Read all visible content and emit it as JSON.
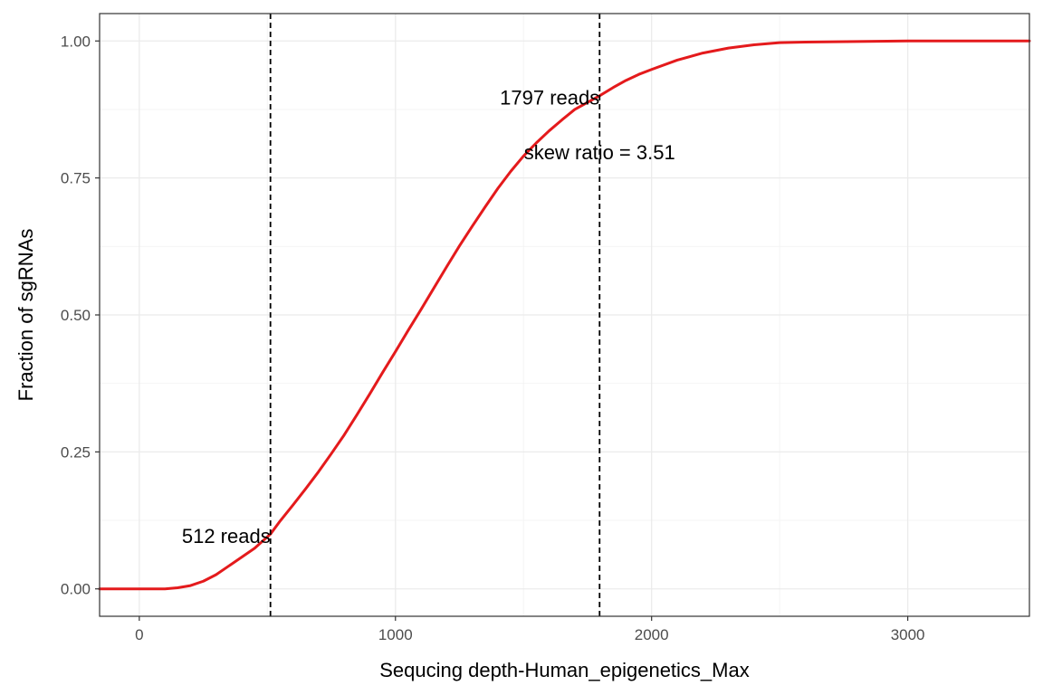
{
  "chart_data": {
    "type": "line",
    "xlabel": "Sequcing depth-Human_epigenetics_Max",
    "ylabel": "Fraction of sgRNAs",
    "xlim": [
      -155,
      3475
    ],
    "ylim": [
      -0.05,
      1.05
    ],
    "x_ticks": [
      0,
      1000,
      2000,
      3000
    ],
    "x_tick_labels": [
      "0",
      "1000",
      "2000",
      "3000"
    ],
    "y_ticks": [
      0,
      0.25,
      0.5,
      0.75,
      1.0
    ],
    "y_tick_labels": [
      "0.00",
      "0.25",
      "0.50",
      "0.75",
      "1.00"
    ],
    "grid": true,
    "legend": "none",
    "series": [
      {
        "color": "#e41a1c",
        "x": [
          -155,
          0,
          100,
          150,
          200,
          250,
          300,
          350,
          400,
          450,
          512,
          550,
          600,
          650,
          700,
          750,
          800,
          850,
          900,
          950,
          1000,
          1050,
          1100,
          1150,
          1200,
          1250,
          1300,
          1350,
          1400,
          1450,
          1500,
          1550,
          1600,
          1650,
          1700,
          1797,
          1850,
          1900,
          1950,
          2000,
          2100,
          2200,
          2300,
          2400,
          2500,
          2600,
          2800,
          3000,
          3200,
          3475
        ],
        "y": [
          0.0,
          0.0,
          0.0,
          0.002,
          0.006,
          0.014,
          0.026,
          0.042,
          0.058,
          0.074,
          0.1,
          0.124,
          0.153,
          0.183,
          0.214,
          0.247,
          0.281,
          0.318,
          0.356,
          0.395,
          0.433,
          0.472,
          0.51,
          0.549,
          0.588,
          0.626,
          0.662,
          0.697,
          0.731,
          0.762,
          0.79,
          0.814,
          0.836,
          0.856,
          0.875,
          0.9,
          0.915,
          0.928,
          0.939,
          0.948,
          0.965,
          0.978,
          0.987,
          0.993,
          0.997,
          0.998,
          0.999,
          1.0,
          1.0,
          1.0
        ]
      }
    ],
    "vlines": [
      {
        "x": 512,
        "style": "dashed",
        "color": "#000000"
      },
      {
        "x": 1797,
        "style": "dashed",
        "color": "#000000"
      }
    ],
    "annotations": [
      {
        "text": "512 reads",
        "x": 512,
        "y": 0.097,
        "anchor": "end"
      },
      {
        "text": "1797 reads",
        "x": 1797,
        "y": 0.897,
        "anchor": "end"
      },
      {
        "text": "skew ratio = 3.51",
        "x": 1797,
        "y": 0.797,
        "anchor": "middle"
      }
    ]
  },
  "colors": {
    "panel_border": "#333333",
    "grid_major": "#ebebeb",
    "grid_minor": "#f4f4f4",
    "curve": "#e41a1c"
  }
}
